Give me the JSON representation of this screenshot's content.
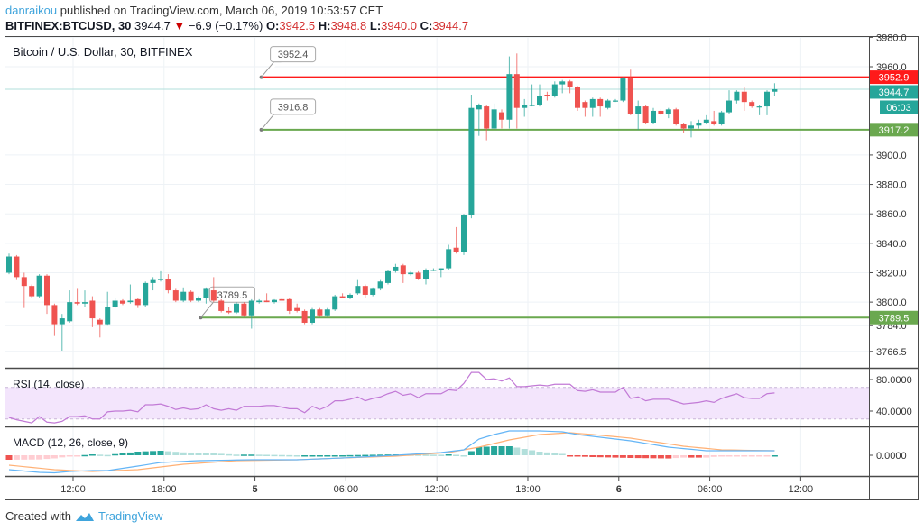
{
  "header": {
    "author": "danraikou",
    "published": "published on TradingView.com, March 06, 2019 10:53:57 CET",
    "symbol": "BITFINEX:BTCUSD, 30",
    "last": "3944.7",
    "change": "−6.9 (−0.17%)",
    "o_label": "O:",
    "o": "3942.5",
    "h_label": "H:",
    "h": "3948.8",
    "l_label": "L:",
    "l": "3940.0",
    "c_label": "C:",
    "c": "3944.7",
    "down_icon": "triangle-down-icon"
  },
  "chart_title": "Bitcoin / U.S. Dollar, 30, BITFINEX",
  "rsi_title": "RSI (14, close)",
  "macd_title": "MACD (12, 26, close, 9)",
  "footer": {
    "created_with": "Created with",
    "brand": "TradingView"
  },
  "colors": {
    "up": "#26a69a",
    "down": "#ef5350",
    "resistance": "#ff1a1a",
    "support": "#6aa84f",
    "rsi_line": "#c27ad6",
    "rsi_band": "#f3e5fc",
    "macd": "#64b5f6",
    "signal": "#ffb074",
    "hist_up_strong": "#26a69a",
    "hist_up_weak": "#b2dfdb",
    "hist_down_strong": "#ef5350",
    "hist_down_weak": "#ffcdd2",
    "brand": "#3fa4dc"
  },
  "chart_data": {
    "type": "candlestick",
    "title": "Bitcoin / U.S. Dollar, 30, BITFINEX",
    "interval_minutes": 30,
    "ylim": [
      3760,
      3984
    ],
    "price_ticks": [
      "3980.0",
      "3960.0",
      "3900.0",
      "3880.0",
      "3860.0",
      "3840.0",
      "3820.0",
      "3800.0",
      "3784.0",
      "3766.5"
    ],
    "time_ticks": [
      {
        "label": "12:00",
        "bold": false
      },
      {
        "label": "18:00",
        "bold": false
      },
      {
        "label": "5",
        "bold": true
      },
      {
        "label": "06:00",
        "bold": false
      },
      {
        "label": "12:00",
        "bold": false
      },
      {
        "label": "18:00",
        "bold": false
      },
      {
        "label": "6",
        "bold": true
      },
      {
        "label": "06:00",
        "bold": false
      },
      {
        "label": "12:00",
        "bold": false
      }
    ],
    "ohlc": [
      [
        3820,
        3833,
        3819,
        3831
      ],
      [
        3831,
        3832,
        3815,
        3817
      ],
      [
        3817,
        3820,
        3796,
        3811
      ],
      [
        3811,
        3812,
        3803,
        3804
      ],
      [
        3804,
        3819,
        3803,
        3818
      ],
      [
        3818,
        3819,
        3792,
        3798
      ],
      [
        3798,
        3799,
        3777,
        3785
      ],
      [
        3785,
        3792,
        3767,
        3789
      ],
      [
        3787,
        3808,
        3786,
        3800
      ],
      [
        3800,
        3809,
        3798,
        3799
      ],
      [
        3799,
        3808,
        3797,
        3800
      ],
      [
        3801,
        3804,
        3783,
        3789
      ],
      [
        3788,
        3789,
        3776,
        3785
      ],
      [
        3785,
        3807,
        3784,
        3797
      ],
      [
        3797,
        3803,
        3796,
        3801
      ],
      [
        3801,
        3802,
        3798,
        3799
      ],
      [
        3800,
        3812,
        3799,
        3801
      ],
      [
        3802,
        3803,
        3796,
        3798
      ],
      [
        3798,
        3814,
        3797,
        3813
      ],
      [
        3813,
        3817,
        3808,
        3815
      ],
      [
        3815,
        3821,
        3814,
        3816
      ],
      [
        3816,
        3819,
        3806,
        3808
      ],
      [
        3808,
        3809,
        3800,
        3801
      ],
      [
        3801,
        3810,
        3800,
        3807
      ],
      [
        3807,
        3808,
        3800,
        3801
      ],
      [
        3801,
        3804,
        3800,
        3803
      ],
      [
        3803,
        3810,
        3799,
        3809
      ],
      [
        3808,
        3817,
        3800,
        3801
      ],
      [
        3801,
        3802,
        3793,
        3794
      ],
      [
        3794,
        3797,
        3792,
        3793
      ],
      [
        3793,
        3800,
        3792,
        3799
      ],
      [
        3799,
        3800,
        3790,
        3791
      ],
      [
        3791,
        3802,
        3782,
        3801
      ],
      [
        3800,
        3802,
        3799,
        3801
      ],
      [
        3801,
        3806,
        3800,
        3800
      ],
      [
        3800,
        3802,
        3799,
        3801.5
      ],
      [
        3802,
        3803,
        3801,
        3801
      ],
      [
        3802,
        3803,
        3792,
        3794
      ],
      [
        3796,
        3799,
        3793,
        3794
      ],
      [
        3794,
        3795,
        3785,
        3786
      ],
      [
        3786,
        3796,
        3785,
        3795
      ],
      [
        3795,
        3796,
        3790,
        3791
      ],
      [
        3791,
        3796,
        3790,
        3795
      ],
      [
        3795,
        3805,
        3794,
        3804
      ],
      [
        3804,
        3806,
        3803,
        3803
      ],
      [
        3803,
        3806,
        3802,
        3805
      ],
      [
        3806,
        3815,
        3805,
        3811
      ],
      [
        3811,
        3812,
        3803,
        3805
      ],
      [
        3805,
        3810,
        3804,
        3809
      ],
      [
        3809,
        3815,
        3808,
        3814
      ],
      [
        3813,
        3822,
        3812,
        3821
      ],
      [
        3821,
        3826,
        3820,
        3824
      ],
      [
        3825,
        3826,
        3813,
        3819
      ],
      [
        3819,
        3821,
        3818,
        3820
      ],
      [
        3820,
        3821,
        3815,
        3816
      ],
      [
        3816,
        3823,
        3812,
        3822
      ],
      [
        3822,
        3823,
        3821,
        3822
      ],
      [
        3822,
        3823,
        3817,
        3823
      ],
      [
        3823,
        3839,
        3822,
        3836
      ],
      [
        3837,
        3851,
        3833,
        3834
      ],
      [
        3834,
        3860,
        3832,
        3859
      ],
      [
        3859,
        3941,
        3857,
        3932
      ],
      [
        3931,
        3935,
        3913,
        3934
      ],
      [
        3933,
        3934,
        3910,
        3918
      ],
      [
        3918,
        3935,
        3917,
        3931
      ],
      [
        3929,
        3931,
        3918,
        3924
      ],
      [
        3924,
        3967,
        3918,
        3955
      ],
      [
        3955,
        3969,
        3918,
        3932
      ],
      [
        3932,
        3938,
        3926,
        3934
      ],
      [
        3934,
        3948,
        3933,
        3934
      ],
      [
        3934,
        3948,
        3933,
        3940
      ],
      [
        3941,
        3943,
        3937,
        3940
      ],
      [
        3940,
        3950,
        3939,
        3948
      ],
      [
        3948,
        3951,
        3942,
        3950
      ],
      [
        3950,
        3951,
        3942,
        3946
      ],
      [
        3946,
        3947,
        3930,
        3932
      ],
      [
        3936,
        3937,
        3926,
        3932
      ],
      [
        3932,
        3939,
        3926,
        3938
      ],
      [
        3938,
        3939,
        3926,
        3933
      ],
      [
        3932,
        3938,
        3931,
        3937
      ],
      [
        3937,
        3938,
        3936,
        3937
      ],
      [
        3937,
        3953,
        3936,
        3952
      ],
      [
        3952,
        3958,
        3927,
        3928
      ],
      [
        3928,
        3937,
        3917,
        3933
      ],
      [
        3933,
        3934,
        3921,
        3922
      ],
      [
        3922,
        3932,
        3921,
        3930
      ],
      [
        3930,
        3931,
        3927,
        3928
      ],
      [
        3928,
        3932,
        3925,
        3931
      ],
      [
        3931,
        3932,
        3920,
        3921
      ],
      [
        3921,
        3922,
        3915,
        3918
      ],
      [
        3918,
        3923,
        3912,
        3920
      ],
      [
        3920,
        3924,
        3918,
        3922
      ],
      [
        3922,
        3927,
        3921,
        3924
      ],
      [
        3923,
        3930,
        3920,
        3921
      ],
      [
        3921,
        3930,
        3920,
        3929
      ],
      [
        3929,
        3944,
        3928,
        3937
      ],
      [
        3937,
        3944,
        3935,
        3943
      ],
      [
        3943,
        3946,
        3930,
        3936
      ],
      [
        3936,
        3937,
        3932,
        3933
      ],
      [
        3933,
        3934,
        3927,
        3933
      ],
      [
        3933,
        3944,
        3927,
        3943
      ],
      [
        3943,
        3948.8,
        3940,
        3944.7
      ]
    ],
    "horizontal_lines": [
      {
        "name": "resistance",
        "value": 3952.9,
        "label": "3952.9",
        "callout": "3952.4",
        "color": "#ff1a1a",
        "start_index": 34
      },
      {
        "name": "support-upper",
        "value": 3917.2,
        "label": "3917.2",
        "callout": "3916.8",
        "color": "#6aa84f",
        "start_index": 34
      },
      {
        "name": "support-lower",
        "value": 3789.5,
        "label": "3789.5",
        "callout": "3789.5",
        "color": "#6aa84f",
        "start_index": 26
      }
    ],
    "last_price": {
      "value": 3944.7,
      "label": "3944.7",
      "countdown": "06:03"
    },
    "rsi": {
      "title": "RSI (14, close)",
      "ylim": [
        20,
        95
      ],
      "band": [
        30,
        70
      ],
      "ticks": [
        "80.0000",
        "40.0000"
      ],
      "values": [
        32,
        29,
        27,
        25,
        33,
        26,
        25,
        27,
        33,
        33,
        34,
        30,
        30,
        39,
        40,
        40,
        41,
        39,
        48,
        48,
        49,
        46,
        42,
        44,
        42,
        43,
        48,
        43,
        41,
        43,
        41,
        46,
        46,
        46,
        47,
        47,
        45,
        43,
        43,
        38,
        46,
        42,
        46,
        53,
        53,
        55,
        58,
        53,
        56,
        58,
        62,
        65,
        60,
        62,
        57,
        62,
        62,
        62,
        67,
        66,
        75,
        89,
        89,
        80,
        81,
        78,
        82,
        71,
        71,
        72,
        73,
        72,
        74,
        74,
        74,
        66,
        65,
        67,
        64,
        64,
        64,
        70,
        56,
        58,
        53,
        55,
        55,
        55,
        52,
        49,
        50,
        51,
        53,
        51,
        56,
        59,
        62,
        57,
        56,
        56,
        62,
        63
      ]
    },
    "macd": {
      "title": "MACD (12, 26, close, 9)",
      "ylim": [
        -23,
        32
      ],
      "ticks": [
        "0.0000"
      ],
      "macd_points": [
        [
          0,
          -16
        ],
        [
          4,
          -19
        ],
        [
          6,
          -19.5
        ],
        [
          8,
          -18
        ],
        [
          11,
          -17
        ],
        [
          13,
          -17
        ],
        [
          17,
          -12
        ],
        [
          20,
          -8
        ],
        [
          25,
          -6
        ],
        [
          32,
          -5
        ],
        [
          38,
          -5
        ],
        [
          44,
          -3
        ],
        [
          51,
          0
        ],
        [
          57,
          3
        ],
        [
          60,
          6
        ],
        [
          62,
          18
        ],
        [
          64,
          23
        ],
        [
          66,
          27
        ],
        [
          70,
          27
        ],
        [
          73,
          26
        ],
        [
          75,
          23
        ],
        [
          80,
          18
        ],
        [
          82,
          16
        ],
        [
          87,
          9
        ],
        [
          92,
          5
        ],
        [
          94,
          5
        ],
        [
          101,
          5
        ]
      ],
      "signal_points": [
        [
          0,
          -11
        ],
        [
          6,
          -16
        ],
        [
          11,
          -18
        ],
        [
          17,
          -16
        ],
        [
          23,
          -10
        ],
        [
          30,
          -6
        ],
        [
          38,
          -5
        ],
        [
          44,
          -3
        ],
        [
          51,
          -1
        ],
        [
          58,
          3
        ],
        [
          62,
          9
        ],
        [
          66,
          17
        ],
        [
          70,
          23
        ],
        [
          74,
          25
        ],
        [
          77,
          23
        ],
        [
          82,
          19
        ],
        [
          89,
          10
        ],
        [
          94,
          6
        ],
        [
          101,
          5
        ]
      ]
    }
  }
}
